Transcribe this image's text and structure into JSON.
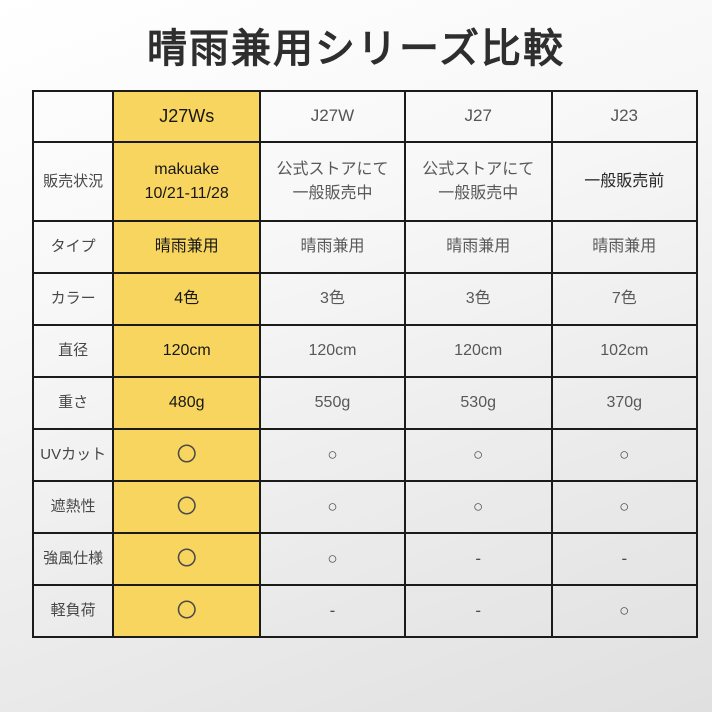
{
  "title": "晴雨兼用シリーズ比較",
  "colors": {
    "highlight_column": "#F8D55E",
    "border": "#1B1B1B",
    "title_text": "#2E2E2E"
  },
  "chart_data": {
    "type": "table",
    "title": "晴雨兼用シリーズ比較",
    "highlighted_column": "J27Ws",
    "columns": [
      "",
      "J27Ws",
      "J27W",
      "J27",
      "J23"
    ],
    "rows": [
      {
        "label": "販売状況",
        "cells": [
          "makuake\n10/21-11/28",
          "公式ストアにて\n一般販売中",
          "公式ストアにて\n一般販売中",
          "一般販売前"
        ]
      },
      {
        "label": "タイプ",
        "cells": [
          "晴雨兼用",
          "晴雨兼用",
          "晴雨兼用",
          "晴雨兼用"
        ]
      },
      {
        "label": "カラー",
        "cells": [
          "4色",
          "3色",
          "3色",
          "7色"
        ]
      },
      {
        "label": "直径",
        "cells": [
          "120cm",
          "120cm",
          "120cm",
          "102cm"
        ]
      },
      {
        "label": "重さ",
        "cells": [
          "480g",
          "550g",
          "530g",
          "370g"
        ]
      },
      {
        "label": "UVカット",
        "cells": [
          "〇",
          "○",
          "○",
          "○"
        ]
      },
      {
        "label": "遮熱性",
        "cells": [
          "〇",
          "○",
          "○",
          "○"
        ]
      },
      {
        "label": "強風仕様",
        "cells": [
          "〇",
          "○",
          "-",
          "-"
        ]
      },
      {
        "label": "軽負荷",
        "cells": [
          "〇",
          "-",
          "-",
          "○"
        ]
      }
    ]
  }
}
